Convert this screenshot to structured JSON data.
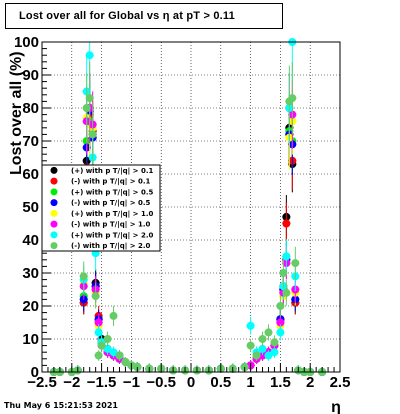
{
  "canvas": {
    "title": "Lost over all for Global vs   η at pT > 0.11",
    "timestamp": "Thu May  6 15:21:53 2021"
  },
  "chart_data": {
    "type": "scatter",
    "title": "Lost over all for Global vs   η at pT > 0.11",
    "xlabel": "η",
    "ylabel": "Lost over all (%)",
    "xlim": [
      -2.5,
      2.5
    ],
    "ylim": [
      0,
      100
    ],
    "grid": true,
    "legend_position": "left",
    "x_ticks": [
      "−2.5",
      "−2",
      "−1.5",
      "−1",
      "−0.5",
      "0",
      "0.5",
      "1",
      "1.5",
      "2",
      "2.5"
    ],
    "y_ticks": [
      "0",
      "10",
      "20",
      "30",
      "40",
      "50",
      "60",
      "70",
      "80",
      "90",
      "100"
    ],
    "series": [
      {
        "name": "(+) with p T/|q| > 0.1",
        "color": "#000000",
        "x": [
          -2.3,
          -2.2,
          -2.0,
          -1.9,
          -1.8,
          -1.75,
          -1.7,
          -1.65,
          -1.6,
          -1.55,
          -1.5,
          -1.4,
          -1.3,
          -1.2,
          -1.1,
          -1.0,
          -0.9,
          -0.7,
          -0.5,
          -0.3,
          -0.1,
          0.1,
          0.3,
          0.5,
          0.7,
          0.9,
          1.0,
          1.1,
          1.2,
          1.3,
          1.4,
          1.5,
          1.55,
          1.6,
          1.65,
          1.7,
          1.75,
          1.8,
          1.9,
          2.0,
          2.2
        ],
        "y": [
          0,
          0,
          0,
          0.5,
          21,
          64,
          80,
          72,
          27,
          16,
          10,
          7,
          5,
          5,
          3,
          2,
          1.5,
          1,
          1,
          0.5,
          0.5,
          0.5,
          0.5,
          1,
          1,
          1.5,
          2,
          4,
          5,
          6,
          8,
          16,
          26,
          47,
          74,
          63,
          21,
          0.5,
          0,
          0,
          0
        ]
      },
      {
        "name": "(-) with p T/|q| > 0.1",
        "color": "#ff0000",
        "x": [
          -2.3,
          -2.2,
          -2.0,
          -1.9,
          -1.8,
          -1.75,
          -1.7,
          -1.65,
          -1.6,
          -1.55,
          -1.5,
          -1.4,
          -1.3,
          -1.2,
          -1.1,
          -1.0,
          -0.9,
          -0.7,
          -0.5,
          -0.3,
          -0.1,
          0.1,
          0.3,
          0.5,
          0.7,
          0.9,
          1.0,
          1.1,
          1.2,
          1.3,
          1.4,
          1.5,
          1.55,
          1.6,
          1.65,
          1.7,
          1.75,
          1.8,
          1.9,
          2.0,
          2.2
        ],
        "y": [
          0,
          0,
          0,
          0.5,
          21,
          62,
          78,
          73,
          26,
          17,
          9,
          6,
          5,
          4,
          3,
          2,
          1.5,
          1,
          1,
          0.5,
          0.5,
          0.5,
          0.5,
          1,
          1,
          1.5,
          2,
          4,
          5,
          6,
          8,
          16,
          25,
          45,
          72,
          64,
          21,
          0.5,
          0,
          0,
          0
        ]
      },
      {
        "name": "(+) with p T/|q| > 0.5",
        "color": "#00ee00",
        "x": [
          -2.3,
          -2.2,
          -2.0,
          -1.9,
          -1.8,
          -1.75,
          -1.7,
          -1.65,
          -1.6,
          -1.55,
          -1.5,
          -1.4,
          -1.3,
          -1.2,
          -1.1,
          -1.0,
          -0.9,
          -0.7,
          -0.5,
          -0.3,
          -0.1,
          0.1,
          0.3,
          0.5,
          0.7,
          0.9,
          1.0,
          1.1,
          1.2,
          1.3,
          1.4,
          1.5,
          1.55,
          1.6,
          1.65,
          1.7,
          1.75,
          1.8,
          1.9,
          2.0,
          2.2
        ],
        "y": [
          0,
          0,
          0,
          0.5,
          23,
          70,
          76,
          72,
          25,
          15,
          9,
          6,
          5,
          4,
          3,
          2,
          1.5,
          1,
          1,
          0.5,
          0.5,
          0.5,
          0.5,
          1,
          1,
          1.5,
          2,
          4,
          5,
          6,
          8,
          15,
          24,
          35,
          73,
          70,
          22,
          0.5,
          0,
          0,
          0
        ]
      },
      {
        "name": "(-) with p T/|q| > 0.5",
        "color": "#0000ff",
        "x": [
          -2.3,
          -2.2,
          -2.0,
          -1.9,
          -1.8,
          -1.75,
          -1.7,
          -1.65,
          -1.6,
          -1.55,
          -1.5,
          -1.4,
          -1.3,
          -1.2,
          -1.1,
          -1.0,
          -0.9,
          -0.7,
          -0.5,
          -0.3,
          -0.1,
          0.1,
          0.3,
          0.5,
          0.7,
          0.9,
          1.0,
          1.1,
          1.2,
          1.3,
          1.4,
          1.5,
          1.55,
          1.6,
          1.65,
          1.7,
          1.75,
          1.8,
          1.9,
          2.0,
          2.2
        ],
        "y": [
          0,
          0,
          0,
          0.5,
          22,
          68,
          79,
          71,
          26,
          16,
          9,
          6,
          5,
          4,
          3,
          2,
          1.5,
          1,
          1,
          0.5,
          0.5,
          0.5,
          0.5,
          1,
          1,
          1.5,
          2,
          4,
          5,
          6,
          8,
          16,
          25,
          34,
          72,
          69,
          22,
          0.5,
          0,
          0,
          0
        ]
      },
      {
        "name": "(+) with p T/|q| > 1.0",
        "color": "#ffff00",
        "x": [
          -2.3,
          -2.2,
          -2.0,
          -1.9,
          -1.8,
          -1.75,
          -1.7,
          -1.65,
          -1.6,
          -1.55,
          -1.5,
          -1.4,
          -1.3,
          -1.2,
          -1.1,
          -1.0,
          -0.9,
          -0.7,
          -0.5,
          -0.3,
          -0.1,
          0.1,
          0.3,
          0.5,
          0.7,
          0.9,
          1.0,
          1.1,
          1.2,
          1.3,
          1.4,
          1.5,
          1.55,
          1.6,
          1.65,
          1.7,
          1.75,
          1.8,
          1.9,
          2.0,
          2.2
        ],
        "y": [
          0,
          0,
          0,
          0.5,
          27,
          77,
          75,
          74,
          24,
          14,
          8,
          6,
          5,
          4,
          3,
          2,
          1.5,
          1,
          1,
          0.5,
          0.5,
          0.5,
          0.5,
          1,
          1,
          1.5,
          2,
          4,
          5,
          6,
          8,
          14,
          23,
          33,
          71,
          76,
          24,
          0.5,
          0,
          0,
          0
        ]
      },
      {
        "name": "(-) with p T/|q| > 1.0",
        "color": "#ff00ff",
        "x": [
          -2.3,
          -2.2,
          -2.0,
          -1.9,
          -1.8,
          -1.75,
          -1.7,
          -1.65,
          -1.6,
          -1.55,
          -1.5,
          -1.4,
          -1.3,
          -1.2,
          -1.1,
          -1.0,
          -0.9,
          -0.7,
          -0.5,
          -0.3,
          -0.1,
          0.1,
          0.3,
          0.5,
          0.7,
          0.9,
          1.0,
          1.1,
          1.2,
          1.3,
          1.4,
          1.5,
          1.55,
          1.6,
          1.65,
          1.7,
          1.75,
          1.8,
          1.9,
          2.0,
          2.2
        ],
        "y": [
          0,
          0,
          0,
          0.5,
          26,
          76,
          80,
          75,
          25,
          15,
          8,
          6,
          5,
          4,
          3,
          2,
          1.5,
          1,
          1,
          0.5,
          0.5,
          0.5,
          0.5,
          1,
          1,
          1.5,
          2,
          4,
          5,
          6,
          8,
          15,
          24,
          33,
          80,
          78,
          25,
          0.5,
          0,
          0,
          0
        ]
      },
      {
        "name": "(+) with p T/|q| > 2.0",
        "color": "#00ffff",
        "x": [
          -2.3,
          -2.2,
          -2.0,
          -1.9,
          -1.8,
          -1.75,
          -1.7,
          -1.65,
          -1.6,
          -1.55,
          -1.5,
          -1.4,
          -1.3,
          -1.2,
          -1.1,
          -1.0,
          -0.9,
          -0.7,
          -0.5,
          -0.3,
          -0.1,
          0.1,
          0.3,
          0.5,
          0.7,
          0.9,
          1.0,
          1.1,
          1.2,
          1.3,
          1.4,
          1.5,
          1.55,
          1.6,
          1.65,
          1.7,
          1.75,
          1.8,
          1.9,
          2.0,
          2.2
        ],
        "y": [
          0,
          0,
          0,
          0.5,
          28,
          85,
          96,
          65,
          36,
          12,
          9,
          7,
          6,
          5,
          3,
          2,
          1.5,
          1,
          1,
          0.5,
          0.5,
          0.5,
          0.5,
          1,
          1,
          1.5,
          14,
          6,
          7,
          5,
          6,
          12,
          26,
          35,
          80,
          100,
          29,
          0.5,
          0,
          0,
          0
        ]
      },
      {
        "name": "(-) with p T/|q| > 2.0",
        "color": "#66cc66",
        "x": [
          -2.3,
          -2.2,
          -2.0,
          -1.9,
          -1.8,
          -1.75,
          -1.7,
          -1.65,
          -1.6,
          -1.55,
          -1.5,
          -1.4,
          -1.3,
          -1.2,
          -1.1,
          -1.0,
          -0.9,
          -0.7,
          -0.5,
          -0.3,
          -0.1,
          0.1,
          0.3,
          0.5,
          0.7,
          0.9,
          1.0,
          1.1,
          1.2,
          1.3,
          1.4,
          1.5,
          1.55,
          1.6,
          1.65,
          1.7,
          1.75,
          1.8,
          1.9,
          2.0,
          2.2
        ],
        "y": [
          0,
          0,
          0,
          0.5,
          29,
          80,
          83,
          72,
          23,
          5,
          8,
          10,
          17,
          5,
          3,
          2,
          1.5,
          1,
          1,
          0.5,
          0.5,
          0.5,
          0.5,
          1,
          1,
          1.5,
          8,
          5,
          10,
          12,
          9,
          20,
          30,
          24,
          82,
          83,
          33,
          0.5,
          0,
          0,
          0
        ]
      }
    ]
  }
}
